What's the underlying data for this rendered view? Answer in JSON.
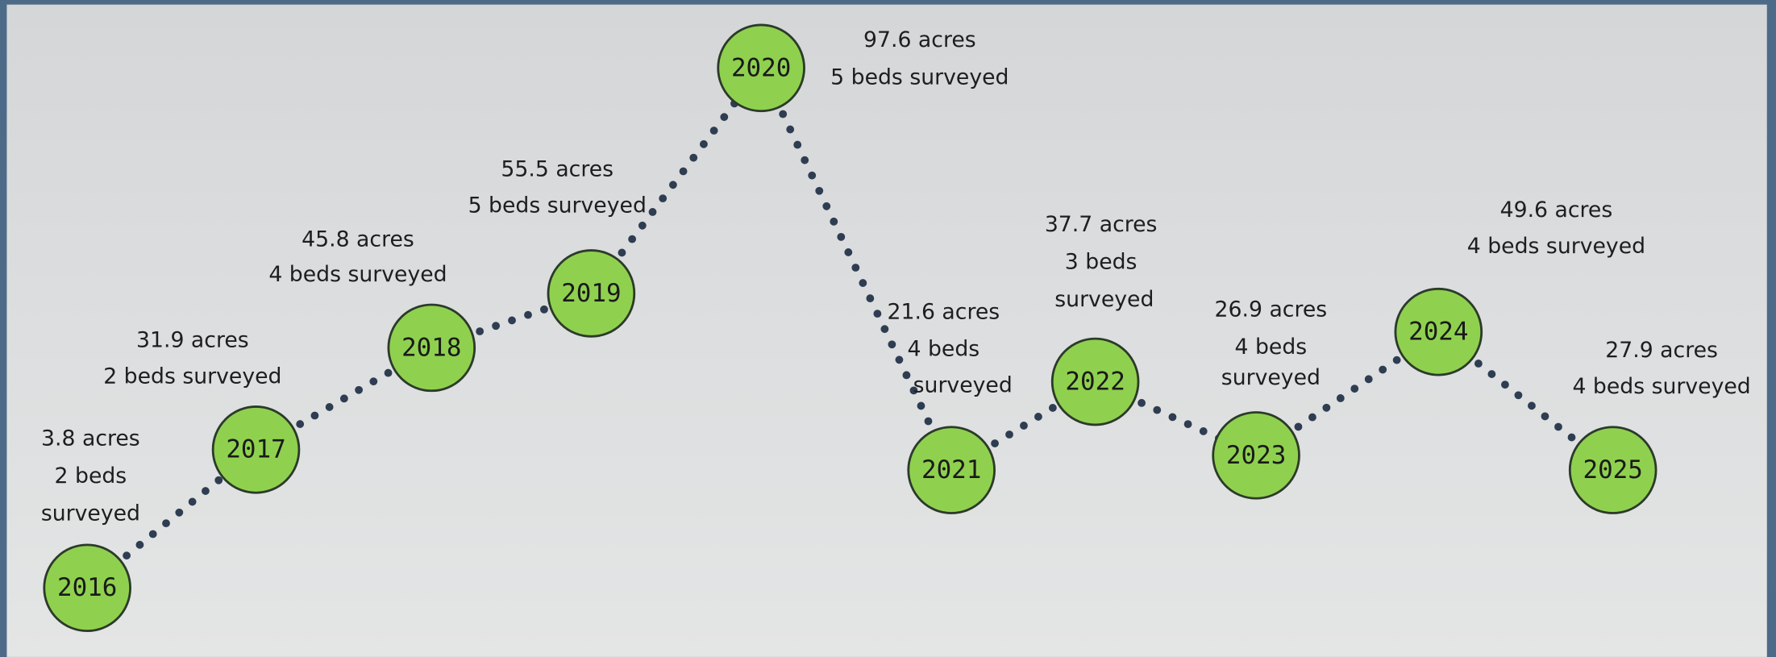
{
  "nodes": [
    {
      "year": "2016",
      "lines": [
        "3.8 acres",
        "2 beds",
        "surveyed"
      ]
    },
    {
      "year": "2017",
      "lines": [
        "31.9 acres",
        "2 beds surveyed"
      ]
    },
    {
      "year": "2018",
      "lines": [
        "45.8 acres",
        "4 beds surveyed"
      ]
    },
    {
      "year": "2019",
      "lines": [
        "55.5 acres",
        "5 beds surveyed"
      ]
    },
    {
      "year": "2020",
      "lines": [
        "97.6 acres",
        "5 beds surveyed"
      ]
    },
    {
      "year": "2021",
      "lines": [
        "21.6 acres",
        "4 beds",
        "surveyed"
      ]
    },
    {
      "year": "2022",
      "lines": [
        "37.7 acres",
        "3 beds",
        "surveyed"
      ]
    },
    {
      "year": "2023",
      "lines": [
        "26.9 acres",
        "4 beds",
        "surveyed"
      ]
    },
    {
      "year": "2024",
      "lines": [
        "49.6 acres",
        "4 beds surveyed"
      ]
    },
    {
      "year": "2025",
      "lines": [
        "27.9 acres",
        "4 beds surveyed"
      ]
    }
  ]
}
